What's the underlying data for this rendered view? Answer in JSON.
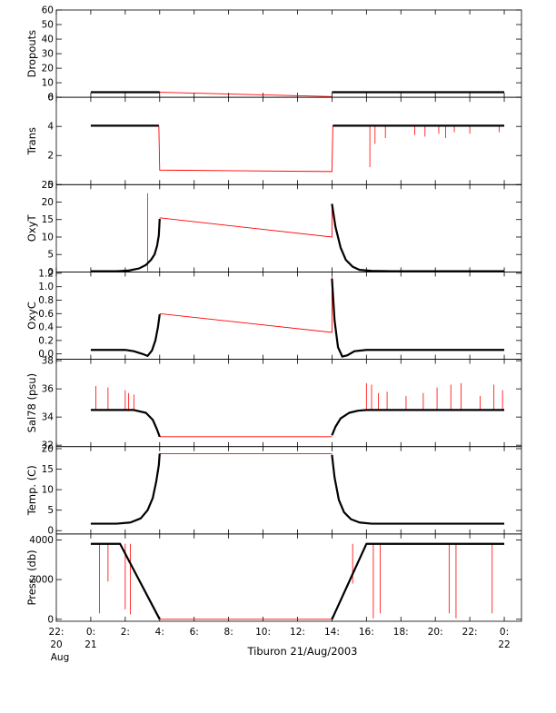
{
  "chart_data": {
    "type": "line",
    "caption": "Tiburon 21/Aug/2003",
    "colors": {
      "data": "#000000",
      "flagged": "#ff0000",
      "axes": "#000000"
    },
    "x_axis": {
      "unit": "hours",
      "range": [
        -2,
        25
      ],
      "ticks": [
        {
          "x": -2,
          "label": "22:",
          "sub": [
            "20",
            "Aug"
          ]
        },
        {
          "x": 0,
          "label": "0:",
          "sub": [
            "21"
          ]
        },
        {
          "x": 2,
          "label": "2:"
        },
        {
          "x": 4,
          "label": "4:"
        },
        {
          "x": 6,
          "label": "6:"
        },
        {
          "x": 8,
          "label": "8:"
        },
        {
          "x": 10,
          "label": "10:"
        },
        {
          "x": 12,
          "label": "12:"
        },
        {
          "x": 14,
          "label": "14:"
        },
        {
          "x": 16,
          "label": "16:"
        },
        {
          "x": 18,
          "label": "18:"
        },
        {
          "x": 20,
          "label": "20:"
        },
        {
          "x": 22,
          "label": "22:"
        },
        {
          "x": 24,
          "label": "0:",
          "sub": [
            "22"
          ]
        }
      ]
    },
    "panels": [
      {
        "id": "dropouts",
        "ylabel": "Dropouts",
        "ylim": [
          0,
          60
        ],
        "yticks": [
          0,
          10,
          20,
          30,
          40,
          50,
          60
        ],
        "yticklabels": [
          "0",
          "10",
          "20",
          "30",
          "40",
          "50",
          "60"
        ],
        "black": [
          [
            [
              0,
              3.5
            ],
            [
              4,
              3.5
            ]
          ],
          [
            [
              14,
              3.5
            ],
            [
              24,
              3.5
            ]
          ]
        ],
        "red": [
          [
            4,
            3.5
          ],
          [
            14,
            0.5
          ]
        ],
        "spikes": []
      },
      {
        "id": "trans",
        "ylabel": "Trans",
        "ylim": [
          0,
          6
        ],
        "yticks": [
          0,
          2,
          4,
          6
        ],
        "yticklabels": [
          "0",
          "2",
          "4",
          "6"
        ],
        "black": [
          [
            [
              0,
              4.05
            ],
            [
              3.95,
              4.05
            ]
          ],
          [
            [
              14.05,
              4.05
            ],
            [
              24,
              4.05
            ]
          ]
        ],
        "red": [
          [
            3.95,
            4.05
          ],
          [
            4.0,
            1.0
          ],
          [
            14.0,
            0.9
          ],
          [
            14.05,
            4.05
          ]
        ],
        "spikes": [
          [
            16.2,
            1.2
          ],
          [
            16.5,
            2.8
          ],
          [
            17.1,
            3.2
          ],
          [
            18.8,
            3.4
          ],
          [
            19.4,
            3.3
          ],
          [
            20.2,
            3.5
          ],
          [
            20.6,
            3.2
          ],
          [
            21.1,
            3.6
          ],
          [
            22.0,
            3.5
          ],
          [
            23.7,
            3.6
          ]
        ]
      },
      {
        "id": "oxyt",
        "ylabel": "OxyT",
        "ylim": [
          0,
          25
        ],
        "yticks": [
          0,
          5,
          10,
          15,
          20,
          25
        ],
        "yticklabels": [
          "0",
          "5",
          "10",
          "15",
          "20",
          "25"
        ],
        "black": [
          [
            [
              0,
              0.2
            ],
            [
              1.5,
              0.2
            ],
            [
              2.2,
              0.4
            ],
            [
              2.8,
              1.0
            ],
            [
              3.2,
              2.0
            ],
            [
              3.5,
              3.5
            ],
            [
              3.7,
              5.0
            ],
            [
              3.85,
              7.5
            ],
            [
              3.95,
              10.5
            ],
            [
              4.0,
              15.2
            ]
          ],
          [
            [
              14.0,
              19.5
            ],
            [
              14.2,
              13.0
            ],
            [
              14.5,
              7.0
            ],
            [
              14.8,
              3.5
            ],
            [
              15.2,
              1.5
            ],
            [
              15.6,
              0.6
            ],
            [
              16.3,
              0.3
            ],
            [
              17.5,
              0.2
            ],
            [
              24,
              0.2
            ]
          ]
        ],
        "red": [
          [
            4.0,
            15.5
          ],
          [
            14.0,
            10.0
          ],
          [
            14.0,
            19.5
          ]
        ],
        "spikes": [
          [
            3.3,
            22.5
          ]
        ]
      },
      {
        "id": "oxyc",
        "ylabel": "OxyC",
        "ylim": [
          -0.08,
          1.22
        ],
        "yticks": [
          0.0,
          0.2,
          0.4,
          0.6,
          0.8,
          1.0,
          1.2
        ],
        "yticklabels": [
          "0.0",
          "0.2",
          "0.4",
          "0.6",
          "0.8",
          "1.0",
          "1.2"
        ],
        "black": [
          [
            [
              0,
              0.06
            ],
            [
              2.0,
              0.06
            ],
            [
              2.5,
              0.04
            ],
            [
              3.0,
              0.0
            ],
            [
              3.3,
              -0.03
            ],
            [
              3.55,
              0.05
            ],
            [
              3.75,
              0.2
            ],
            [
              3.9,
              0.4
            ],
            [
              4.0,
              0.59
            ]
          ],
          [
            [
              14.0,
              1.12
            ],
            [
              14.15,
              0.5
            ],
            [
              14.35,
              0.1
            ],
            [
              14.6,
              -0.04
            ],
            [
              14.9,
              -0.02
            ],
            [
              15.3,
              0.04
            ],
            [
              16.0,
              0.06
            ],
            [
              24,
              0.06
            ]
          ]
        ],
        "red": [
          [
            4.0,
            0.6
          ],
          [
            14.0,
            0.32
          ],
          [
            14.0,
            1.15
          ]
        ],
        "spikes": []
      },
      {
        "id": "sal",
        "ylabel": "Sal78 (psu)",
        "ylim": [
          31.9,
          38.1
        ],
        "yticks": [
          32,
          34,
          36,
          38
        ],
        "yticklabels": [
          "32",
          "34",
          "36",
          "38"
        ],
        "black": [
          [
            [
              0,
              34.5
            ],
            [
              2.5,
              34.5
            ],
            [
              3.2,
              34.3
            ],
            [
              3.6,
              33.8
            ],
            [
              3.85,
              33.1
            ],
            [
              4.0,
              32.6
            ]
          ],
          [
            [
              14.0,
              32.7
            ],
            [
              14.2,
              33.3
            ],
            [
              14.5,
              33.9
            ],
            [
              15.0,
              34.3
            ],
            [
              15.5,
              34.45
            ],
            [
              16.0,
              34.5
            ],
            [
              24,
              34.5
            ]
          ]
        ],
        "red": [
          [
            4.0,
            32.6
          ],
          [
            14.0,
            32.6
          ]
        ],
        "spikes": [
          [
            0.3,
            36.2
          ],
          [
            1.0,
            36.1
          ],
          [
            2.0,
            35.9
          ],
          [
            2.2,
            35.7
          ],
          [
            2.5,
            35.6
          ],
          [
            16.0,
            36.4
          ],
          [
            16.3,
            36.3
          ],
          [
            16.7,
            35.7
          ],
          [
            17.2,
            35.8
          ],
          [
            18.3,
            35.5
          ],
          [
            19.3,
            35.7
          ],
          [
            20.1,
            36.1
          ],
          [
            20.9,
            36.3
          ],
          [
            21.5,
            36.4
          ],
          [
            22.6,
            35.5
          ],
          [
            23.4,
            36.3
          ],
          [
            23.9,
            35.9
          ]
        ]
      },
      {
        "id": "temp",
        "ylabel": "Temp. (C)",
        "ylim": [
          -0.8,
          20.5
        ],
        "yticks": [
          0,
          5,
          10,
          15,
          20
        ],
        "yticklabels": [
          "0",
          "5",
          "10",
          "15",
          "20"
        ],
        "black": [
          [
            [
              0,
              1.7
            ],
            [
              1.5,
              1.7
            ],
            [
              2.3,
              2.0
            ],
            [
              2.9,
              3.0
            ],
            [
              3.3,
              5.0
            ],
            [
              3.6,
              8.0
            ],
            [
              3.8,
              12.0
            ],
            [
              3.95,
              16.0
            ],
            [
              4.0,
              18.8
            ]
          ],
          [
            [
              14.0,
              18.5
            ],
            [
              14.15,
              13.0
            ],
            [
              14.4,
              7.5
            ],
            [
              14.7,
              4.5
            ],
            [
              15.1,
              2.8
            ],
            [
              15.6,
              2.0
            ],
            [
              16.3,
              1.7
            ],
            [
              24,
              1.7
            ]
          ]
        ],
        "red": [
          [
            4.0,
            18.8
          ],
          [
            14.0,
            18.8
          ]
        ],
        "spikes": []
      },
      {
        "id": "press",
        "ylabel": "Press. (db)",
        "ylim": [
          -100,
          4300
        ],
        "yticks": [
          0,
          2000,
          4000
        ],
        "yticklabels": [
          "0",
          "2000",
          "4000"
        ],
        "black": [
          [
            [
              0,
              3800
            ],
            [
              1.7,
              3800
            ],
            [
              4.0,
              0
            ]
          ],
          [
            [
              14.0,
              0
            ],
            [
              16.0,
              3800
            ],
            [
              24,
              3800
            ]
          ]
        ],
        "red": [
          [
            4.0,
            0
          ],
          [
            14.0,
            0
          ]
        ],
        "spikes": [
          [
            0.5,
            300
          ],
          [
            1.0,
            1900
          ],
          [
            2.0,
            500
          ],
          [
            2.3,
            250
          ],
          [
            15.2,
            1800
          ],
          [
            16.4,
            50
          ],
          [
            16.8,
            300
          ],
          [
            20.8,
            300
          ],
          [
            21.2,
            50
          ],
          [
            23.3,
            300
          ]
        ]
      }
    ]
  }
}
